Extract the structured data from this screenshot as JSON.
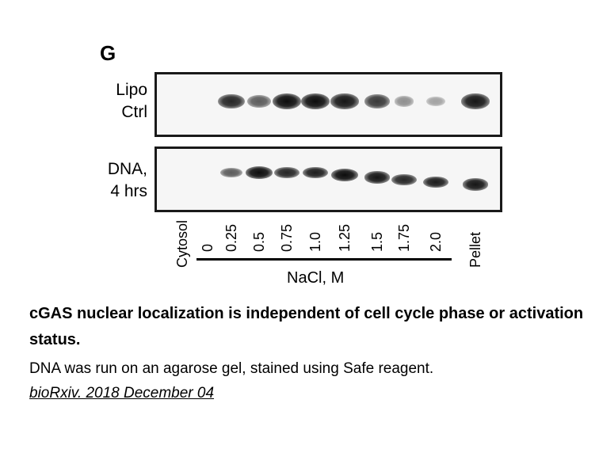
{
  "figure": {
    "panel_letter": "G",
    "rows": [
      {
        "label_line1": "Lipo",
        "label_line2": "Ctrl"
      },
      {
        "label_line1": "DNA,",
        "label_line2": "4 hrs"
      }
    ],
    "lanes": [
      "Cytosol",
      "0",
      "0.25",
      "0.5",
      "0.75",
      "1.0",
      "1.25",
      "1.5",
      "1.75",
      "2.0",
      "Pellet"
    ],
    "axis_label": "NaCl, M",
    "band_intensity": {
      "row1": [
        0,
        0,
        0.85,
        0.55,
        1.0,
        1.0,
        0.95,
        0.75,
        0.25,
        0.15,
        0.95
      ],
      "row2": [
        0,
        0,
        0.55,
        1.0,
        0.85,
        0.9,
        1.0,
        0.95,
        0.85,
        0.9,
        0.95
      ]
    }
  },
  "caption": {
    "title": "cGAS nuclear localization is independent of cell cycle phase or activation status.",
    "body": "DNA was run on an agarose gel, stained using Safe reagent.",
    "source": "bioRxiv. 2018 December 04"
  }
}
